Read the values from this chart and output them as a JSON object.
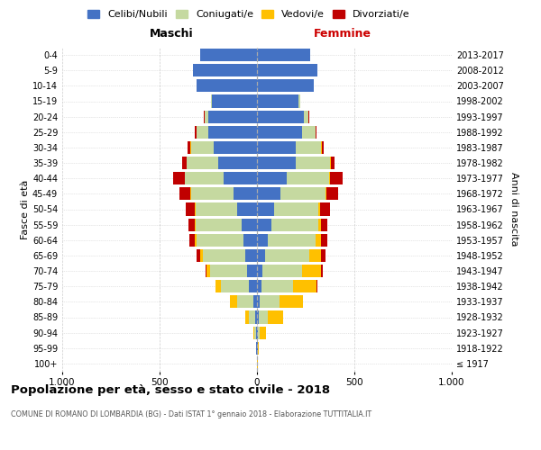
{
  "age_groups": [
    "100+",
    "95-99",
    "90-94",
    "85-89",
    "80-84",
    "75-79",
    "70-74",
    "65-69",
    "60-64",
    "55-59",
    "50-54",
    "45-49",
    "40-44",
    "35-39",
    "30-34",
    "25-29",
    "20-24",
    "15-19",
    "10-14",
    "5-9",
    "0-4"
  ],
  "birth_years": [
    "≤ 1917",
    "1918-1922",
    "1923-1927",
    "1928-1932",
    "1933-1937",
    "1938-1942",
    "1943-1947",
    "1948-1952",
    "1953-1957",
    "1958-1962",
    "1963-1967",
    "1968-1972",
    "1973-1977",
    "1978-1982",
    "1983-1987",
    "1988-1992",
    "1993-1997",
    "1998-2002",
    "2003-2007",
    "2008-2012",
    "2013-2017"
  ],
  "males": {
    "celibi": [
      2,
      3,
      5,
      10,
      20,
      40,
      50,
      60,
      70,
      80,
      100,
      120,
      170,
      200,
      220,
      250,
      250,
      230,
      310,
      330,
      290
    ],
    "coniugati": [
      0,
      2,
      8,
      30,
      80,
      145,
      190,
      220,
      240,
      235,
      215,
      220,
      200,
      160,
      120,
      60,
      20,
      5,
      2,
      0,
      0
    ],
    "vedovi": [
      0,
      1,
      5,
      20,
      40,
      30,
      20,
      10,
      8,
      5,
      3,
      2,
      2,
      2,
      2,
      1,
      0,
      0,
      0,
      0,
      0
    ],
    "divorziati": [
      0,
      0,
      0,
      0,
      0,
      0,
      5,
      20,
      30,
      30,
      50,
      55,
      60,
      20,
      15,
      10,
      2,
      0,
      0,
      0,
      0
    ]
  },
  "females": {
    "nubili": [
      2,
      3,
      5,
      10,
      15,
      25,
      30,
      40,
      55,
      75,
      90,
      120,
      155,
      200,
      200,
      230,
      240,
      215,
      290,
      310,
      275
    ],
    "coniugate": [
      0,
      2,
      10,
      45,
      100,
      160,
      200,
      230,
      245,
      240,
      225,
      230,
      215,
      175,
      130,
      70,
      25,
      5,
      2,
      0,
      0
    ],
    "vedove": [
      2,
      5,
      30,
      80,
      120,
      120,
      100,
      60,
      30,
      15,
      10,
      5,
      5,
      3,
      2,
      1,
      0,
      0,
      0,
      0,
      0
    ],
    "divorziate": [
      0,
      0,
      0,
      0,
      0,
      5,
      10,
      20,
      30,
      30,
      50,
      60,
      65,
      20,
      10,
      5,
      2,
      0,
      0,
      0,
      0
    ]
  },
  "colors": {
    "celibi": "#4472c4",
    "coniugati": "#c5d9a0",
    "vedovi": "#ffc000",
    "divorziati": "#c00000"
  },
  "title": "Popolazione per età, sesso e stato civile - 2018",
  "subtitle": "COMUNE DI ROMANO DI LOMBARDIA (BG) - Dati ISTAT 1° gennaio 2018 - Elaborazione TUTTITALIA.IT",
  "xlabel_left": "Maschi",
  "xlabel_right": "Femmine",
  "ylabel_left": "Fasce di età",
  "ylabel_right": "Anni di nascita",
  "xlim": 1000,
  "grid_color": "#cccccc",
  "legend_labels": [
    "Celibi/Nubili",
    "Coniugati/e",
    "Vedovi/e",
    "Divorziati/e"
  ]
}
